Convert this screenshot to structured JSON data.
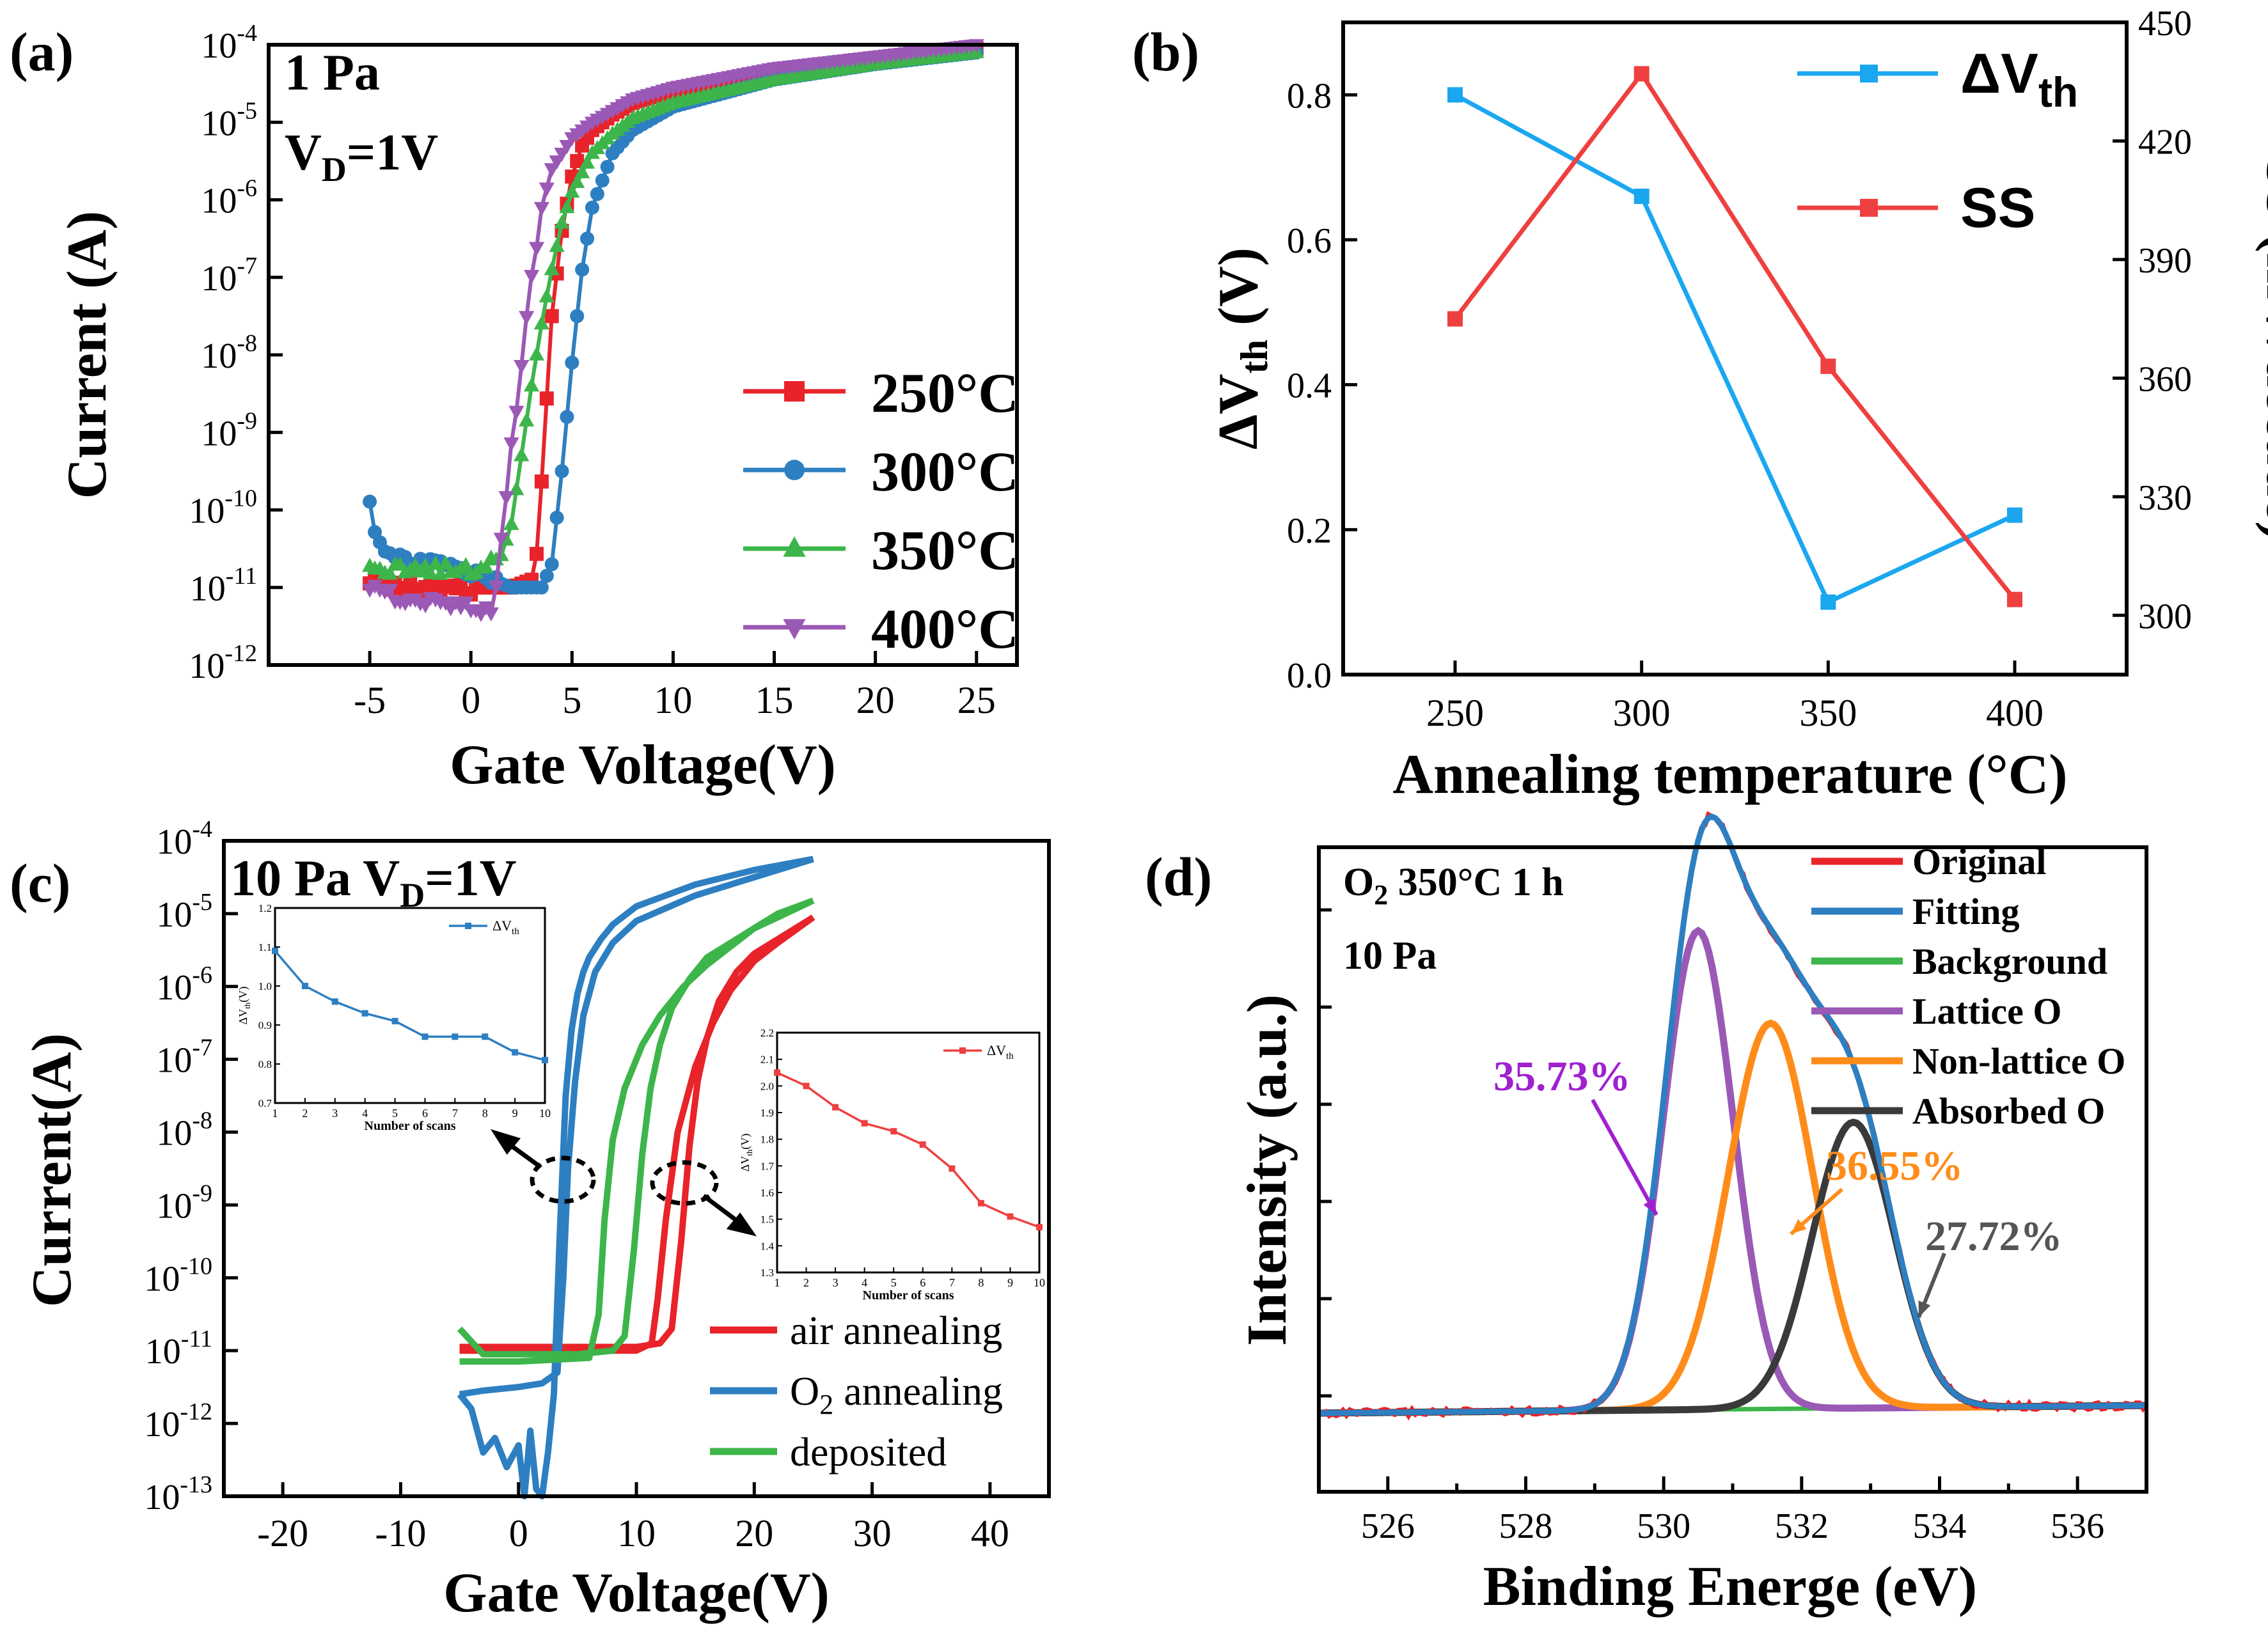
{
  "colors": {
    "red": "#e8232a",
    "blue": "#2d7fc1",
    "green": "#3db54a",
    "purple": "#9b59b6",
    "cyan": "#1aa7f0",
    "redline": "#ee4040",
    "orange": "#ff8c1a",
    "dark": "#3a3a3a",
    "purple_text": "#a020d0",
    "orange_text": "#ff8c1a",
    "gray_text": "#555555"
  },
  "chart_data": [
    {
      "id": "a",
      "panel_label": "(a)",
      "type": "line",
      "annotations": [
        "1 Pa",
        "V",
        "D",
        "=1V"
      ],
      "xlabel": "Gate Voltage(V)",
      "ylabel": "Current (A)",
      "xlim": [
        -10,
        27
      ],
      "ylim_log10": [
        -12,
        -4
      ],
      "yscale": "log",
      "xticks": [
        -5,
        0,
        5,
        10,
        15,
        20,
        25
      ],
      "xtick_labels": [
        "-5",
        "0",
        "5",
        "10",
        "15",
        "20",
        "25"
      ],
      "ytick_bases": [
        "10",
        "10",
        "10",
        "10",
        "10",
        "10",
        "10",
        "10",
        "10"
      ],
      "ytick_exps": [
        "-12",
        "-11",
        "-10",
        "-9",
        "-8",
        "-7",
        "-6",
        "-5",
        "-4"
      ],
      "series": [
        {
          "name": "250°C",
          "label": "250°C",
          "marker": "square",
          "color_key": "red",
          "x": [
            -5,
            -4,
            -3,
            -2,
            -1,
            0,
            1,
            2,
            2.5,
            3,
            3.3,
            3.6,
            4,
            4.5,
            5,
            5.5,
            6,
            7,
            8,
            10,
            15,
            20,
            25
          ],
          "log10_y": [
            -10.9,
            -10.95,
            -10.95,
            -11,
            -11,
            -11,
            -11,
            -11,
            -10.95,
            -10.9,
            -10.5,
            -9.2,
            -7.5,
            -6.4,
            -5.7,
            -5.3,
            -5.1,
            -4.9,
            -4.75,
            -4.6,
            -4.35,
            -4.2,
            -4.05
          ]
        },
        {
          "name": "300°C",
          "label": "300°C",
          "marker": "circle",
          "color_key": "blue",
          "x": [
            -5,
            -4.8,
            -4.5,
            -4,
            -3,
            -2,
            -1,
            0,
            1,
            2,
            3,
            3.5,
            4,
            4.5,
            5,
            5.5,
            6,
            7,
            8,
            10,
            15,
            20,
            25
          ],
          "log10_y": [
            -9.85,
            -10.3,
            -10.5,
            -10.6,
            -10.65,
            -10.7,
            -10.75,
            -10.8,
            -10.9,
            -11,
            -11,
            -11,
            -10.7,
            -9.5,
            -8.1,
            -6.9,
            -6.1,
            -5.4,
            -5.1,
            -4.8,
            -4.45,
            -4.25,
            -4.1
          ]
        },
        {
          "name": "350°C",
          "label": "350°C",
          "marker": "triangle",
          "color_key": "green",
          "x": [
            -5,
            -4,
            -3,
            -2,
            -1,
            0,
            1,
            1.5,
            2,
            2.5,
            3,
            3.5,
            4,
            4.5,
            5,
            6,
            7,
            8,
            10,
            15,
            20,
            25
          ],
          "log10_y": [
            -10.75,
            -10.75,
            -10.75,
            -10.75,
            -10.75,
            -10.75,
            -10.7,
            -10.6,
            -10.2,
            -9.3,
            -8.4,
            -7.6,
            -6.9,
            -6.3,
            -5.9,
            -5.4,
            -5.15,
            -4.95,
            -4.75,
            -4.45,
            -4.25,
            -4.1
          ]
        },
        {
          "name": "400°C",
          "label": "400°C",
          "marker": "triangle-down",
          "color_key": "purple",
          "x": [
            -5,
            -4,
            -3,
            -2,
            -1,
            0,
            0.5,
            1,
            1.3,
            1.6,
            2,
            2.5,
            3,
            3.5,
            4,
            5,
            6,
            7,
            8,
            10,
            15,
            20,
            25
          ],
          "log10_y": [
            -11.05,
            -11.1,
            -11.15,
            -11.2,
            -11.2,
            -11.25,
            -11.3,
            -11.35,
            -11,
            -10.1,
            -9.2,
            -8.1,
            -7,
            -6.1,
            -5.6,
            -5.2,
            -5.0,
            -4.85,
            -4.7,
            -4.55,
            -4.3,
            -4.15,
            -4.0
          ]
        }
      ]
    },
    {
      "id": "b",
      "panel_label": "(b)",
      "type": "line",
      "xlabel": "Annealing temperature (°C)",
      "ylabel_left": "ΔV",
      "ylabel_left_sub": "th",
      "ylabel_left_unit": " (V)",
      "ylabel_right": "SS (mV/decade)",
      "categories": [
        250,
        300,
        350,
        400
      ],
      "xtick_labels": [
        "250",
        "300",
        "350",
        "400"
      ],
      "xlim": [
        220,
        430
      ],
      "ylim_left": [
        0,
        0.9
      ],
      "ylim_right": [
        285,
        450
      ],
      "yticks_left": [
        "0.0",
        "0.2",
        "0.4",
        "0.6",
        "0.8"
      ],
      "yticks_right": [
        "300",
        "330",
        "360",
        "390",
        "420",
        "450"
      ],
      "series": [
        {
          "name": "ΔVth",
          "label": "ΔV",
          "label_sub": "th",
          "axis": "left",
          "color_key": "cyan",
          "values": [
            0.8,
            0.66,
            0.1,
            0.22
          ]
        },
        {
          "name": "SS",
          "label": "SS",
          "axis": "right",
          "color_key": "redline",
          "values": [
            375,
            437,
            363,
            304
          ]
        }
      ]
    },
    {
      "id": "c",
      "panel_label": "(c)",
      "type": "line",
      "annotations": [
        "10 Pa V",
        "D",
        "=1V"
      ],
      "xlabel": "Gate Voltage(V)",
      "ylabel": "Current(A)",
      "xlim": [
        -25,
        45
      ],
      "ylim_log10": [
        -13,
        -4
      ],
      "yscale": "log",
      "xtick_labels": [
        "-20",
        "-10",
        "0",
        "10",
        "20",
        "30",
        "40"
      ],
      "ytick_bases": [
        "10",
        "10",
        "10",
        "10",
        "10",
        "10",
        "10",
        "10",
        "10",
        "10"
      ],
      "ytick_exps": [
        "-13",
        "-12",
        "-11",
        "-10",
        "-9",
        "-8",
        "-7",
        "-6",
        "-5",
        "-4"
      ],
      "series": [
        {
          "name": "air annealing",
          "label": "air annealing",
          "color_key": "red",
          "forward": {
            "x": [
              -5,
              0,
              5,
              10,
              12,
              13,
              13.8,
              14.5,
              15.2,
              16,
              17,
              18.5,
              20,
              22,
              25
            ],
            "log10_y": [
              -10.95,
              -10.95,
              -10.95,
              -10.95,
              -10.9,
              -10.7,
              -9.5,
              -8.2,
              -7.3,
              -6.7,
              -6.2,
              -5.8,
              -5.55,
              -5.35,
              -5.05
            ]
          },
          "reverse": {
            "x": [
              25,
              22,
              20,
              18,
              16.5,
              15,
              13.5,
              12.5,
              11.8,
              11.3,
              10,
              5,
              0,
              -5
            ],
            "log10_y": [
              -5.05,
              -5.4,
              -5.65,
              -6.05,
              -6.5,
              -7.1,
              -8,
              -9.2,
              -10.3,
              -10.9,
              -11,
              -11,
              -11,
              -11
            ]
          }
        },
        {
          "name": "O2 annealing",
          "label": "O",
          "label_sub": "2",
          "label_rest": " annealing",
          "color_key": "blue",
          "forward": {
            "x": [
              -5,
              -4,
              -3,
              -2,
              -1,
              0,
              0.5,
              1,
              1.5,
              2,
              2.5,
              3,
              3.5,
              4,
              4.5,
              5,
              5.5,
              6,
              7,
              8,
              10,
              15,
              20,
              25
            ],
            "log10_y": [
              -11.6,
              -11.8,
              -12.4,
              -12.2,
              -12.6,
              -12.3,
              -13,
              -12.1,
              -12.9,
              -13,
              -12.4,
              -11.6,
              -9.4,
              -7.5,
              -6.6,
              -6.1,
              -5.8,
              -5.6,
              -5.35,
              -5.15,
              -4.9,
              -4.6,
              -4.4,
              -4.25
            ]
          },
          "reverse": {
            "x": [
              25,
              20,
              15,
              10,
              8,
              6.5,
              5.5,
              4.8,
              4.2,
              3.8,
              3.3,
              2,
              0,
              -3,
              -5
            ],
            "log10_y": [
              -4.25,
              -4.5,
              -4.75,
              -5.1,
              -5.4,
              -5.8,
              -6.4,
              -7.3,
              -8.5,
              -10,
              -11.3,
              -11.45,
              -11.5,
              -11.55,
              -11.6
            ]
          }
        },
        {
          "name": "deposited",
          "label": "deposited",
          "color_key": "green",
          "forward": {
            "x": [
              -5,
              -3,
              0,
              5,
              8,
              9,
              9.8,
              10.5,
              11.2,
              12,
              13,
              14.5,
              16,
              18,
              20,
              22,
              25
            ],
            "log10_y": [
              -10.7,
              -11.05,
              -11.05,
              -11.05,
              -11,
              -10.8,
              -9.6,
              -8.3,
              -7.4,
              -6.8,
              -6.3,
              -5.9,
              -5.6,
              -5.4,
              -5.2,
              -5.0,
              -4.82
            ]
          },
          "reverse": {
            "x": [
              25,
              22,
              20,
              18,
              16,
              14,
              12,
              10.5,
              9,
              8,
              7.3,
              6.8,
              6,
              0,
              -4,
              -5
            ],
            "log10_y": [
              -4.82,
              -5.05,
              -5.2,
              -5.45,
              -5.7,
              -6.0,
              -6.4,
              -6.8,
              -7.4,
              -8.1,
              -9.2,
              -10.5,
              -11.1,
              -11.15,
              -11.15,
              -11.15
            ]
          }
        }
      ],
      "insets": [
        {
          "id": "c-inset1",
          "type": "line",
          "series_label": "ΔV",
          "series_label_sub": "th",
          "color_key": "blue",
          "xlabel": "Number of scans",
          "ylabel": "ΔV",
          "ylabel_sub": "th",
          "ylabel_unit": "(V)",
          "x": [
            1,
            2,
            3,
            4,
            5,
            6,
            7,
            8,
            9,
            10
          ],
          "values": [
            1.09,
            1.0,
            0.96,
            0.93,
            0.91,
            0.87,
            0.87,
            0.87,
            0.83,
            0.81
          ],
          "xlim": [
            1,
            10
          ],
          "ylim": [
            0.7,
            1.2
          ],
          "xtick_labels": [
            "1",
            "2",
            "3",
            "4",
            "5",
            "6",
            "7",
            "8",
            "9",
            "10"
          ],
          "ytick_labels": [
            "0.7",
            "0.8",
            "0.9",
            "1.0",
            "1.1",
            "1.2"
          ]
        },
        {
          "id": "c-inset2",
          "type": "line",
          "series_label": "ΔV",
          "series_label_sub": "th",
          "color_key": "redline",
          "xlabel": "Number of scans",
          "ylabel": "ΔV",
          "ylabel_sub": "th",
          "ylabel_unit": "(V)",
          "x": [
            1,
            2,
            3,
            4,
            5,
            6,
            7,
            8,
            9,
            10
          ],
          "values": [
            2.05,
            2.0,
            1.92,
            1.86,
            1.83,
            1.78,
            1.69,
            1.56,
            1.51,
            1.47
          ],
          "xlim": [
            1,
            10
          ],
          "ylim": [
            1.3,
            2.2
          ],
          "xtick_labels": [
            "1",
            "2",
            "3",
            "4",
            "5",
            "6",
            "7",
            "8",
            "9",
            "10"
          ],
          "ytick_labels": [
            "1.3",
            "1.4",
            "1.5",
            "1.6",
            "1.7",
            "1.8",
            "1.9",
            "2.0",
            "2.1",
            "2.2"
          ]
        }
      ]
    },
    {
      "id": "d",
      "panel_label": "(d)",
      "type": "line",
      "annotations": [
        "O",
        "2",
        " 350°C 1 h",
        "10 Pa"
      ],
      "xlabel": "Binding Energe (eV)",
      "ylabel": "Intensity (a.u.)",
      "xlim": [
        525,
        537
      ],
      "xtick_labels": [
        "526",
        "528",
        "530",
        "532",
        "534",
        "536"
      ],
      "peaks": [
        {
          "name": "Lattice O",
          "center": 530.5,
          "height": 0.72,
          "fwhm": 1.2,
          "percent": "35.73%"
        },
        {
          "name": "Non-lattice O",
          "center": 531.55,
          "height": 0.58,
          "fwhm": 1.45,
          "percent": "36.55%"
        },
        {
          "name": "Absorbed O",
          "center": 532.75,
          "height": 0.43,
          "fwhm": 1.4,
          "percent": "27.72%"
        }
      ],
      "legend": [
        {
          "label": "Original",
          "color_key": "red"
        },
        {
          "label": "Fitting",
          "color_key": "blue"
        },
        {
          "label": "Background",
          "color_key": "green"
        },
        {
          "label": "Lattice O",
          "color_key": "purple"
        },
        {
          "label": "Non-lattice O",
          "color_key": "orange"
        },
        {
          "label": "Absorbed O",
          "color_key": "dark"
        }
      ]
    }
  ]
}
